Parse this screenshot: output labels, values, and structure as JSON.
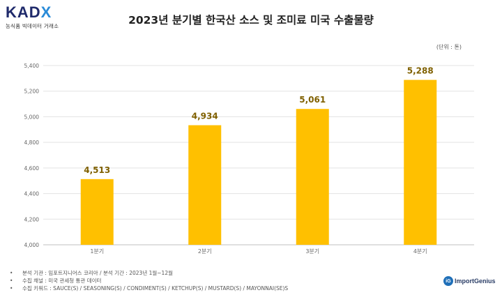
{
  "logo": {
    "main_k": "KAD",
    "main_x": "X",
    "sub": "농식품 빅데이터 거래소"
  },
  "chart_data": {
    "type": "bar",
    "title": "2023년 분기별 한국산 소스 및 조미료 미국 수출물량",
    "unit_label": "(단위 : 톤)",
    "categories": [
      "1분기",
      "2분기",
      "3분기",
      "4분기"
    ],
    "values": [
      4513,
      4934,
      5061,
      5288
    ],
    "value_labels": [
      "4,513",
      "4,934",
      "5,061",
      "5,288"
    ],
    "ylim": [
      4000,
      5400
    ],
    "yticks": [
      4000,
      4200,
      4400,
      4600,
      4800,
      5000,
      5200,
      5400
    ],
    "ytick_labels": [
      "4,000",
      "4,200",
      "4,400",
      "4,600",
      "4,800",
      "5,000",
      "5,200",
      "5,400"
    ],
    "grid": true,
    "bar_color": "#FFC000",
    "label_color": "#7F6000"
  },
  "notes": [
    "분석 기관 : 임포트지니어스 코리아 / 분석 기간 : 2023년 1월~12월",
    "수집 채널 : 미국 관세청 통관 데이터",
    "수집 키워드 : SAUCE(S) / SEASONING(S) / CONDIMENT(S) / KETCHUP(S) / MUSTARD(S) / MAYONNAI(SE)S"
  ],
  "brand": {
    "icon_text": "iG",
    "name": "ImportGenius"
  }
}
